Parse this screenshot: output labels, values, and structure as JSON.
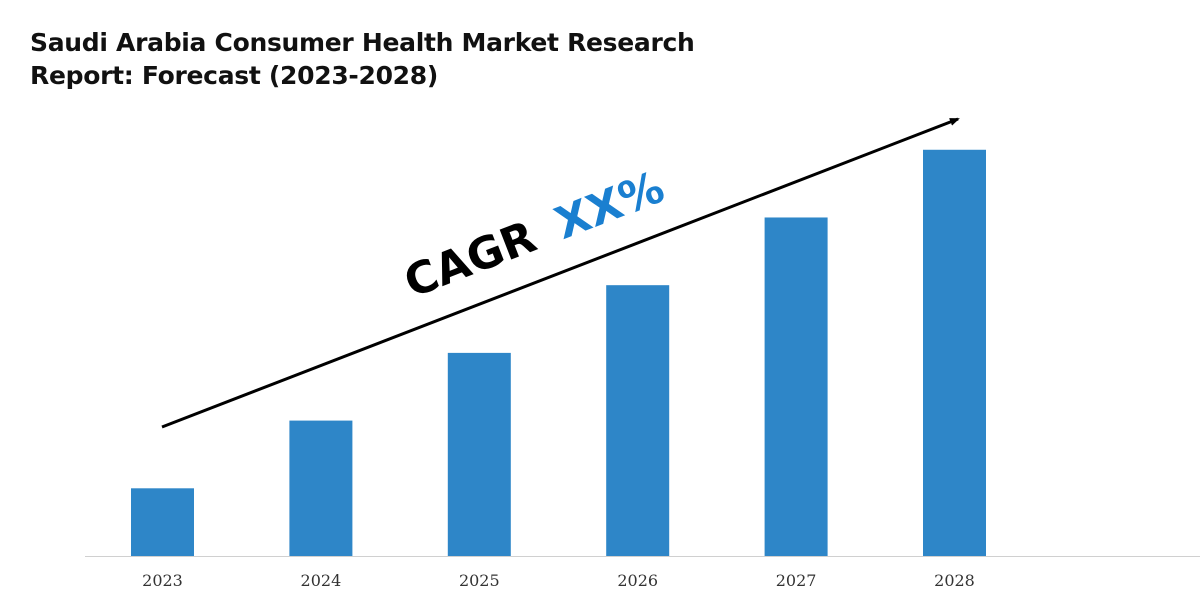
{
  "chart_data": {
    "type": "bar",
    "title_line1": "Saudi Arabia Consumer Health Market Research",
    "title_line2": "Report: Forecast (2023-2028)",
    "categories": [
      "2023",
      "2024",
      "2025",
      "2026",
      "2027",
      "2028"
    ],
    "values": [
      1,
      2,
      3,
      4,
      5,
      6
    ],
    "ylim": [
      0,
      6.1
    ],
    "xlabel": "",
    "ylabel": "",
    "grid": false,
    "annotation": {
      "prefix": "CAGR",
      "value": "XX%"
    },
    "colors": {
      "bar": "#2e86c8",
      "accent": "#1a7fd0",
      "arrow": "#000000"
    }
  }
}
